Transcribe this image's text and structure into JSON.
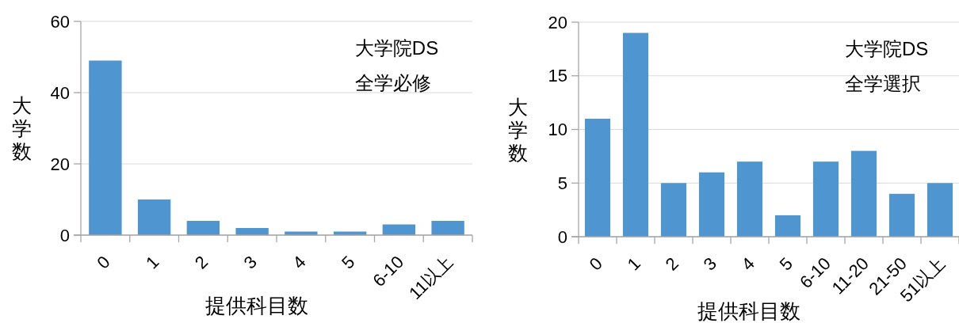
{
  "chart_data": [
    {
      "type": "bar",
      "categories": [
        "0",
        "1",
        "2",
        "3",
        "4",
        "5",
        "6-10",
        "11以上"
      ],
      "values": [
        49,
        10,
        4,
        2,
        1,
        1,
        3,
        4
      ],
      "color": "#4f95d0",
      "ylim": [
        0,
        60
      ],
      "yticks": [
        0,
        20,
        40,
        60
      ],
      "grid": "y",
      "xlabel": "提供科目数",
      "ylabel": "大学数",
      "annotations": [
        "大学院DS",
        "全学必修"
      ]
    },
    {
      "type": "bar",
      "categories": [
        "0",
        "1",
        "2",
        "3",
        "4",
        "5",
        "6-10",
        "11-20",
        "21-50",
        "51以上"
      ],
      "values": [
        11,
        19,
        5,
        6,
        7,
        2,
        7,
        8,
        4,
        5
      ],
      "color": "#4f95d0",
      "ylim": [
        0,
        20
      ],
      "yticks": [
        0,
        5,
        10,
        15,
        20
      ],
      "grid": "y",
      "xlabel": "提供科目数",
      "ylabel": "大学数",
      "annotations": [
        "大学院DS",
        "全学選択"
      ]
    }
  ]
}
